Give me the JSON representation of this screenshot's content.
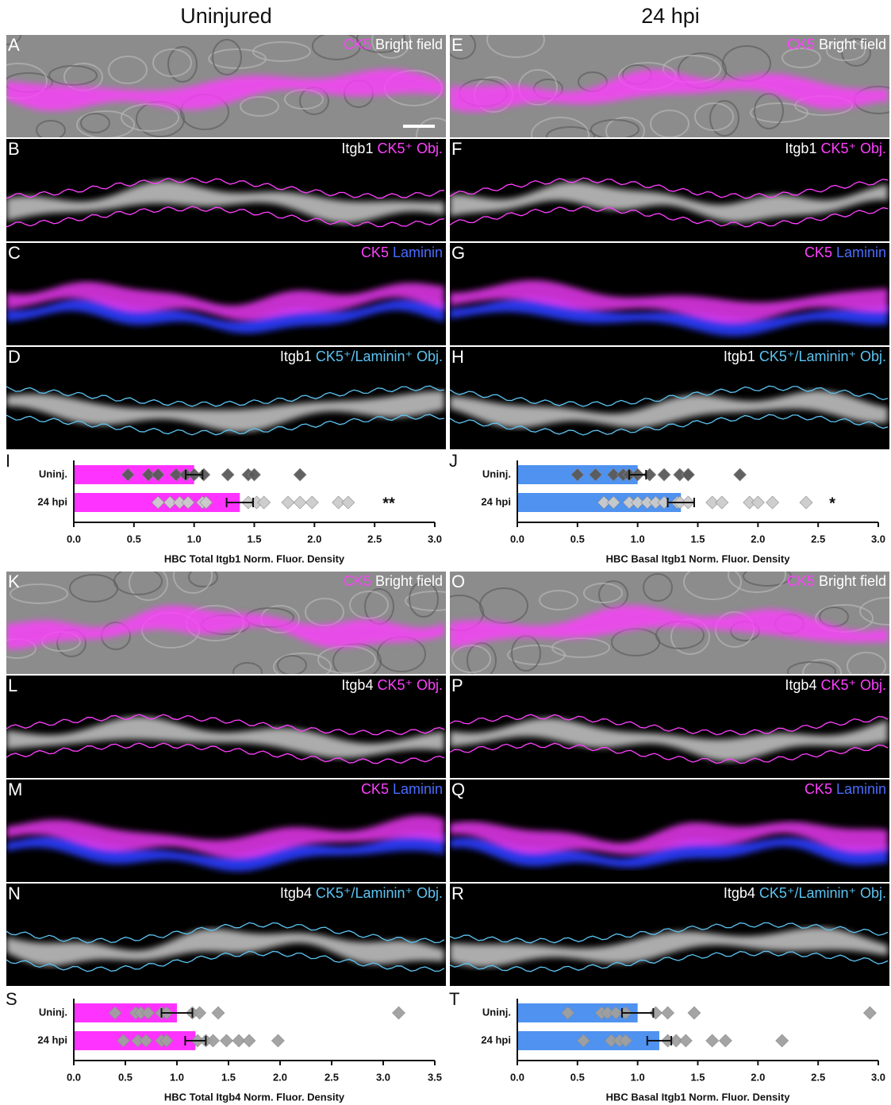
{
  "columns": [
    "Uninjured",
    "24 hpi"
  ],
  "panels": [
    {
      "letter": "A",
      "labels": [
        {
          "text": "CK5",
          "color": "#ff40ff"
        },
        {
          "text": "Bright field",
          "color": "#ffffff"
        }
      ]
    },
    {
      "letter": "B",
      "labels": [
        {
          "text": "Itgb1",
          "color": "#ffffff"
        },
        {
          "text": "CK5⁺ Obj.",
          "color": "#ff40ff"
        }
      ]
    },
    {
      "letter": "C",
      "labels": [
        {
          "text": "CK5",
          "color": "#ff40ff"
        },
        {
          "text": "Laminin",
          "color": "#4a6cff"
        }
      ]
    },
    {
      "letter": "D",
      "labels": [
        {
          "text": "Itgb1",
          "color": "#ffffff"
        },
        {
          "text": "CK5⁺/Laminin⁺ Obj.",
          "color": "#5cc4f2"
        }
      ]
    },
    {
      "letter": "E",
      "labels": [
        {
          "text": "CK5",
          "color": "#ff40ff"
        },
        {
          "text": "Bright field",
          "color": "#ffffff"
        }
      ]
    },
    {
      "letter": "F",
      "labels": [
        {
          "text": "Itgb1",
          "color": "#ffffff"
        },
        {
          "text": "CK5⁺ Obj.",
          "color": "#ff40ff"
        }
      ]
    },
    {
      "letter": "G",
      "labels": [
        {
          "text": "CK5",
          "color": "#ff40ff"
        },
        {
          "text": "Laminin",
          "color": "#4a6cff"
        }
      ]
    },
    {
      "letter": "H",
      "labels": [
        {
          "text": "Itgb1",
          "color": "#ffffff"
        },
        {
          "text": "CK5⁺/Laminin⁺ Obj.",
          "color": "#5cc4f2"
        }
      ]
    },
    {
      "letter": "K",
      "labels": [
        {
          "text": "CK5",
          "color": "#ff40ff"
        },
        {
          "text": "Bright field",
          "color": "#ffffff"
        }
      ]
    },
    {
      "letter": "L",
      "labels": [
        {
          "text": "Itgb4",
          "color": "#ffffff"
        },
        {
          "text": "CK5⁺ Obj.",
          "color": "#ff40ff"
        }
      ]
    },
    {
      "letter": "M",
      "labels": [
        {
          "text": "CK5",
          "color": "#ff40ff"
        },
        {
          "text": "Laminin",
          "color": "#4a6cff"
        }
      ]
    },
    {
      "letter": "N",
      "labels": [
        {
          "text": "Itgb4",
          "color": "#ffffff"
        },
        {
          "text": "CK5⁺/Laminin⁺ Obj.",
          "color": "#5cc4f2"
        }
      ]
    },
    {
      "letter": "O",
      "labels": [
        {
          "text": "CK5",
          "color": "#ff40ff"
        },
        {
          "text": "Bright field",
          "color": "#ffffff"
        }
      ]
    },
    {
      "letter": "P",
      "labels": [
        {
          "text": "Itgb4",
          "color": "#ffffff"
        },
        {
          "text": "CK5⁺ Obj.",
          "color": "#ff40ff"
        }
      ]
    },
    {
      "letter": "Q",
      "labels": [
        {
          "text": "CK5",
          "color": "#ff40ff"
        },
        {
          "text": "Laminin",
          "color": "#4a6cff"
        }
      ]
    },
    {
      "letter": "R",
      "labels": [
        {
          "text": "Itgb4",
          "color": "#ffffff"
        },
        {
          "text": "CK5⁺/Laminin⁺ Obj.",
          "color": "#5cc4f2"
        }
      ]
    }
  ],
  "chart_data": [
    {
      "type": "bar",
      "label": "I",
      "orientation": "horizontal",
      "categories": [
        "Uninj.",
        "24 hpi"
      ],
      "values": [
        1.0,
        1.38
      ],
      "errors": [
        0.07,
        0.11
      ],
      "color": "#ff33ff",
      "points": [
        [
          0.45,
          0.62,
          0.7,
          0.85,
          0.93,
          1.0,
          1.08,
          1.28,
          1.45,
          1.5,
          1.88
        ],
        [
          0.7,
          0.8,
          0.88,
          0.95,
          1.07,
          1.1,
          1.45,
          1.52,
          1.58,
          1.78,
          1.88,
          1.98,
          2.2,
          2.28
        ]
      ],
      "point_colors": [
        "#5a5a5a",
        "#cccccc"
      ],
      "significance": "**",
      "xlim": [
        0,
        3
      ],
      "xticks": [
        {
          "value": 0,
          "label": "0.0"
        },
        {
          "value": 0.5,
          "label": "0.5"
        },
        {
          "value": 1,
          "label": "1.0"
        },
        {
          "value": 1.5,
          "label": "1.5"
        },
        {
          "value": 2,
          "label": "2.0"
        },
        {
          "value": 2.5,
          "label": "2.5"
        },
        {
          "value": 3,
          "label": "3.0"
        }
      ],
      "xlabel": "HBC Total Itgb1 Norm. Fluor. Density"
    },
    {
      "type": "bar",
      "label": "J",
      "orientation": "horizontal",
      "categories": [
        "Uninj.",
        "24 hpi"
      ],
      "values": [
        1.0,
        1.36
      ],
      "errors": [
        0.07,
        0.11
      ],
      "color": "#4f92f0",
      "points": [
        [
          0.5,
          0.65,
          0.8,
          0.88,
          0.93,
          1.0,
          1.1,
          1.22,
          1.35,
          1.42,
          1.42,
          1.85
        ],
        [
          0.72,
          0.8,
          0.93,
          1.0,
          1.08,
          1.15,
          1.22,
          1.33,
          1.35,
          1.42,
          1.62,
          1.7,
          1.93,
          2.0,
          2.12,
          2.4
        ]
      ],
      "point_colors": [
        "#5a5a5a",
        "#cccccc"
      ],
      "significance": "*",
      "xlim": [
        0,
        3
      ],
      "xticks": [
        {
          "value": 0,
          "label": "0.0"
        },
        {
          "value": 0.5,
          "label": "0.5"
        },
        {
          "value": 1,
          "label": "1.0"
        },
        {
          "value": 1.5,
          "label": "1.5"
        },
        {
          "value": 2,
          "label": "2.0"
        },
        {
          "value": 2.5,
          "label": "2.5"
        },
        {
          "value": 3,
          "label": "3.0"
        }
      ],
      "xlabel": "HBC Basal Itgb1 Norm. Fluor. Density"
    },
    {
      "type": "bar",
      "label": "S",
      "orientation": "horizontal",
      "categories": [
        "Uninj.",
        "24 hpi"
      ],
      "values": [
        1.0,
        1.18
      ],
      "errors": [
        0.15,
        0.1
      ],
      "color": "#ff33ff",
      "points": [
        [
          0.4,
          0.6,
          0.65,
          0.72,
          0.85,
          0.9,
          1.15,
          1.22,
          1.4,
          3.15
        ],
        [
          0.48,
          0.62,
          0.7,
          0.85,
          0.9,
          1.2,
          1.28,
          1.35,
          1.48,
          1.6,
          1.7,
          1.98
        ]
      ],
      "point_colors": [
        "#a0a0a0",
        "#a0a0a0"
      ],
      "xlim": [
        0,
        3.5
      ],
      "xticks": [
        {
          "value": 0,
          "label": "0.0"
        },
        {
          "value": 0.5,
          "label": "0.5"
        },
        {
          "value": 1,
          "label": "1.0"
        },
        {
          "value": 1.5,
          "label": "1.5"
        },
        {
          "value": 2,
          "label": "2.0"
        },
        {
          "value": 2.5,
          "label": "2.5"
        },
        {
          "value": 3,
          "label": "3.0"
        },
        {
          "value": 3.5,
          "label": "3.5"
        }
      ],
      "xlabel": "HBC Total Itgb4 Norm. Fluor. Density"
    },
    {
      "type": "bar",
      "label": "T",
      "orientation": "horizontal",
      "categories": [
        "Uninj.",
        "24 hpi"
      ],
      "values": [
        1.0,
        1.18
      ],
      "errors": [
        0.13,
        0.1
      ],
      "color": "#4f92f0",
      "points": [
        [
          0.42,
          0.7,
          0.75,
          0.82,
          0.9,
          1.15,
          1.25,
          1.47,
          2.93
        ],
        [
          0.55,
          0.78,
          0.85,
          0.9,
          1.25,
          1.32,
          1.4,
          1.62,
          1.73,
          2.2
        ]
      ],
      "point_colors": [
        "#a0a0a0",
        "#a0a0a0"
      ],
      "xlim": [
        0,
        3
      ],
      "xticks": [
        {
          "value": 0,
          "label": "0.0"
        },
        {
          "value": 0.5,
          "label": "0.5"
        },
        {
          "value": 1,
          "label": "1.0"
        },
        {
          "value": 1.5,
          "label": "1.5"
        },
        {
          "value": 2,
          "label": "2.0"
        },
        {
          "value": 2.5,
          "label": "2.5"
        },
        {
          "value": 3,
          "label": "3.0"
        }
      ],
      "xlabel": "HBC Basal Itgb1 Norm. Fluor. Density"
    }
  ]
}
